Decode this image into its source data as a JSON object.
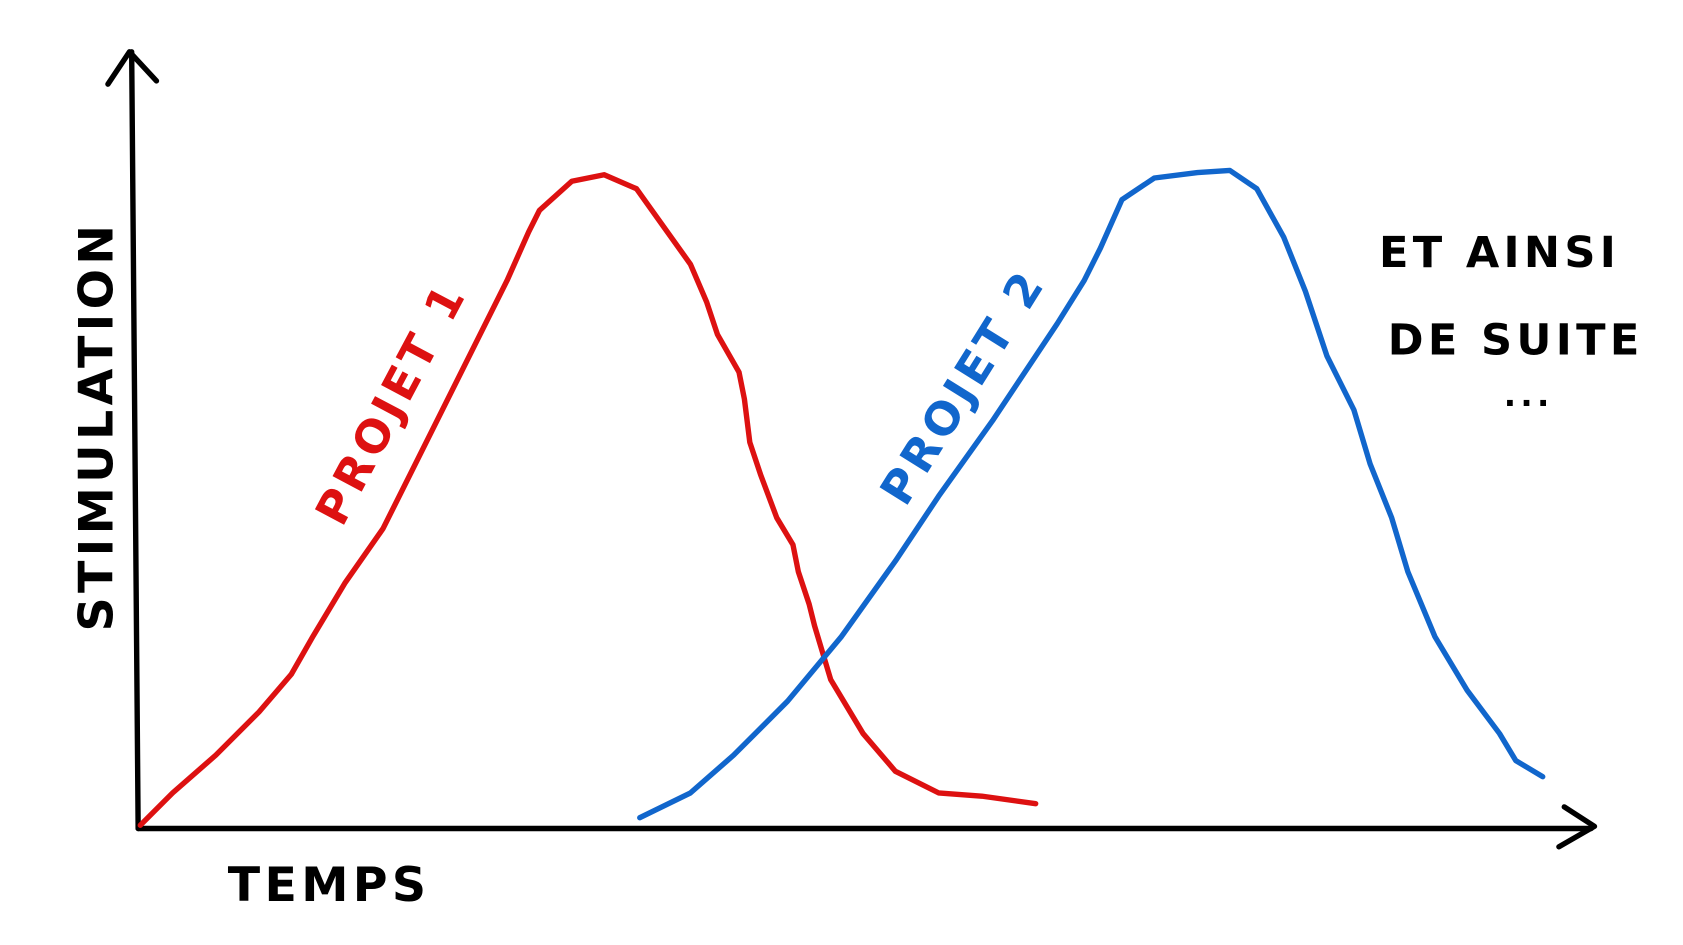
{
  "axes": {
    "y_label": "STIMULATION",
    "x_label": "TEMPS"
  },
  "curves": [
    {
      "label": "PROJET 1"
    },
    {
      "label": "PROJET 2"
    }
  ],
  "note": {
    "lines": [
      "ET AINSI",
      "DE SUITE",
      "..."
    ]
  }
}
